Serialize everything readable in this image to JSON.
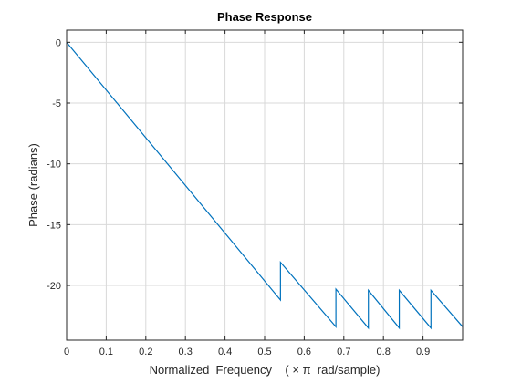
{
  "chart_data": {
    "type": "line",
    "title": "Phase Response",
    "xlabel": "Normalized  Frequency    ( × π  rad/sample)",
    "ylabel": "Phase (radians)",
    "xlim": [
      0,
      1
    ],
    "ylim": [
      -24.5,
      1
    ],
    "grid": true,
    "colors": {
      "series": "#0072BD",
      "grid": "#d9d9d9",
      "axis": "#262626"
    },
    "x_ticks": [
      {
        "value": 0,
        "label": "0"
      },
      {
        "value": 0.1,
        "label": "0.1"
      },
      {
        "value": 0.2,
        "label": "0.2"
      },
      {
        "value": 0.3,
        "label": "0.3"
      },
      {
        "value": 0.4,
        "label": "0.4"
      },
      {
        "value": 0.5,
        "label": "0.5"
      },
      {
        "value": 0.6,
        "label": "0.6"
      },
      {
        "value": 0.7,
        "label": "0.7"
      },
      {
        "value": 0.8,
        "label": "0.8"
      },
      {
        "value": 0.9,
        "label": "0.9"
      }
    ],
    "y_ticks": [
      {
        "value": 0,
        "label": "0"
      },
      {
        "value": -5,
        "label": "-5"
      },
      {
        "value": -10,
        "label": "-10"
      },
      {
        "value": -15,
        "label": "-15"
      },
      {
        "value": -20,
        "label": "-20"
      }
    ],
    "series": [
      {
        "x": [
          0,
          0.54,
          0.54,
          0.68,
          0.68,
          0.762,
          0.762,
          0.84,
          0.84,
          0.92,
          0.92,
          1.0
        ],
        "y": [
          0,
          -21.2,
          -18.1,
          -23.4,
          -20.3,
          -23.5,
          -20.4,
          -23.5,
          -20.4,
          -23.5,
          -20.4,
          -23.4
        ]
      }
    ]
  }
}
